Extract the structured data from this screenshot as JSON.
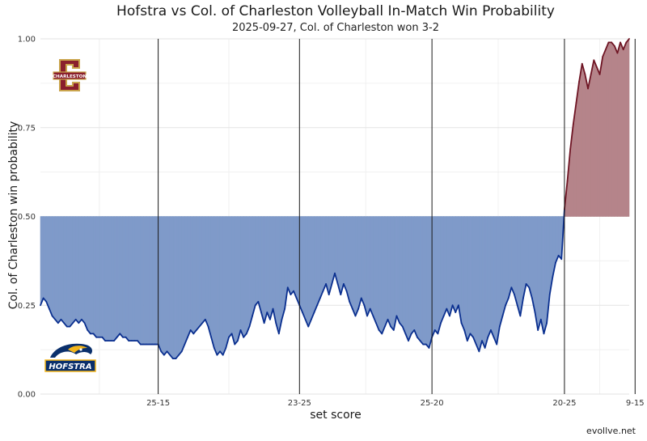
{
  "header": {
    "title": "Hofstra vs Col. of Charleston Volleyball In-Match Win Probability",
    "subtitle": "2025-09-27, Col. of Charleston won 3-2"
  },
  "footer": {
    "credit": "evollve.net"
  },
  "logos": {
    "top": "CHARLESTON",
    "bottom": "HOFSTRA"
  },
  "colors": {
    "hofstra_fill": "#7f9ac9",
    "hofstra_line": "#0a2f8f",
    "charleston_fill": "#b5848a",
    "charleston_line": "#6e1423"
  },
  "chart_data": {
    "type": "area",
    "title": "Hofstra vs Col. of Charleston Volleyball In-Match Win Probability",
    "subtitle": "2025-09-27, Col. of Charleston won 3-2",
    "xlabel": "set score",
    "ylabel": "Col. of Charleston win probability",
    "ylim": [
      0,
      1
    ],
    "yticks": [
      "0.00",
      "0.25",
      "0.50",
      "0.75",
      "1.00"
    ],
    "baseline": 0.5,
    "set_end_ticks": [
      {
        "point": 40,
        "label": "25-15"
      },
      {
        "point": 88,
        "label": "23-25"
      },
      {
        "point": 133,
        "label": "25-20"
      },
      {
        "point": 178,
        "label": "20-25"
      },
      {
        "point": 202,
        "label": "9-15"
      }
    ],
    "series": [
      {
        "values": [
          0.25,
          0.27,
          0.26,
          0.24,
          0.22,
          0.21,
          0.2,
          0.21,
          0.2,
          0.19,
          0.19,
          0.2,
          0.21,
          0.2,
          0.21,
          0.2,
          0.18,
          0.17,
          0.17,
          0.16,
          0.16,
          0.16,
          0.15,
          0.15,
          0.15,
          0.15,
          0.16,
          0.17,
          0.16,
          0.16,
          0.15,
          0.15,
          0.15,
          0.15,
          0.14,
          0.14,
          0.14,
          0.14,
          0.14,
          0.14,
          0.14,
          0.12,
          0.11,
          0.12,
          0.11,
          0.1,
          0.1,
          0.11,
          0.12,
          0.14,
          0.16,
          0.18,
          0.17,
          0.18,
          0.19,
          0.2,
          0.21,
          0.19,
          0.16,
          0.13,
          0.11,
          0.12,
          0.11,
          0.13,
          0.16,
          0.17,
          0.14,
          0.15,
          0.18,
          0.16,
          0.17,
          0.19,
          0.22,
          0.25,
          0.26,
          0.23,
          0.2,
          0.23,
          0.21,
          0.24,
          0.2,
          0.17,
          0.21,
          0.24,
          0.3,
          0.28,
          0.29,
          0.27,
          0.25,
          0.23,
          0.21,
          0.19,
          0.21,
          0.23,
          0.25,
          0.27,
          0.29,
          0.31,
          0.28,
          0.31,
          0.34,
          0.31,
          0.28,
          0.31,
          0.29,
          0.26,
          0.24,
          0.22,
          0.24,
          0.27,
          0.25,
          0.22,
          0.24,
          0.22,
          0.2,
          0.18,
          0.17,
          0.19,
          0.21,
          0.19,
          0.18,
          0.22,
          0.2,
          0.19,
          0.17,
          0.15,
          0.17,
          0.18,
          0.16,
          0.15,
          0.14,
          0.14,
          0.13,
          0.16,
          0.18,
          0.17,
          0.2,
          0.22,
          0.24,
          0.22,
          0.25,
          0.23,
          0.25,
          0.2,
          0.18,
          0.15,
          0.17,
          0.16,
          0.14,
          0.12,
          0.15,
          0.13,
          0.16,
          0.18,
          0.16,
          0.14,
          0.19,
          0.22,
          0.25,
          0.27,
          0.3,
          0.28,
          0.25,
          0.22,
          0.27,
          0.31,
          0.3,
          0.27,
          0.23,
          0.18,
          0.21,
          0.17,
          0.2,
          0.28,
          0.33,
          0.37,
          0.39,
          0.38,
          0.52,
          0.6,
          0.69,
          0.76,
          0.82,
          0.88,
          0.93,
          0.9,
          0.86,
          0.9,
          0.94,
          0.92,
          0.9,
          0.95,
          0.97,
          0.99,
          0.99,
          0.98,
          0.96,
          0.99,
          0.97,
          0.99,
          1.0
        ]
      }
    ]
  }
}
